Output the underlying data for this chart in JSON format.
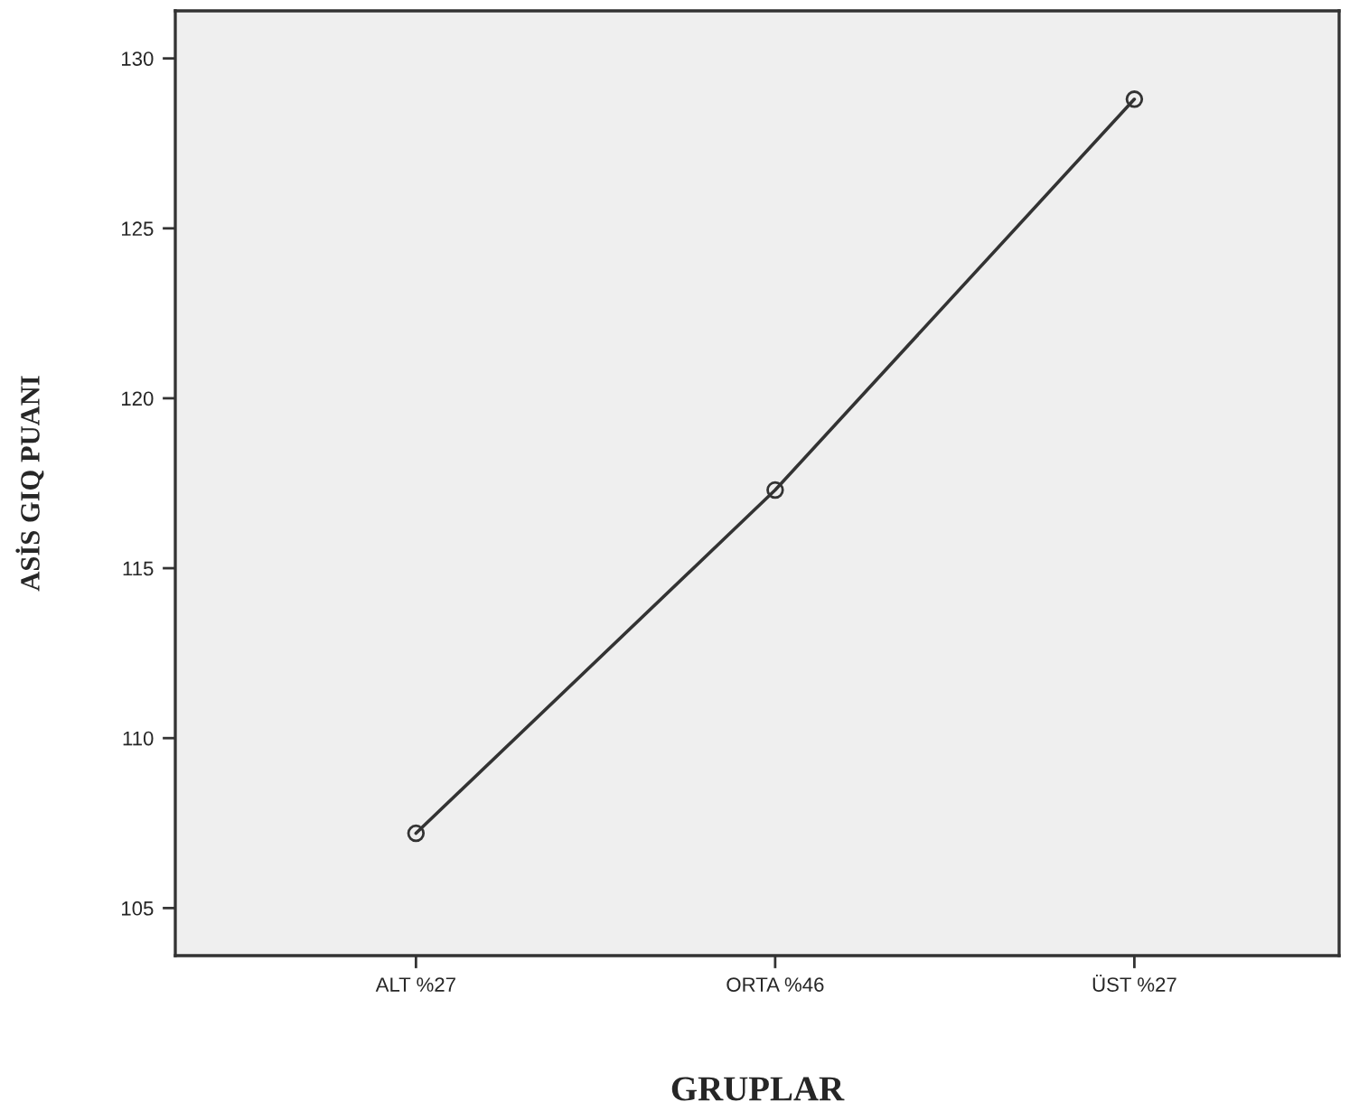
{
  "chart_data": {
    "type": "line",
    "xlabel": "GRUPLAR",
    "ylabel": "ASİS GIQ PUANI",
    "categories": [
      "ALT %27",
      "ORTA %46",
      "ÜST %27"
    ],
    "series": [
      {
        "color": "#333333",
        "values": [
          107.2,
          117.3,
          128.8
        ]
      }
    ],
    "ylim": [
      103.6,
      131.4
    ],
    "yticks": [
      105,
      110,
      115,
      120,
      125,
      130
    ],
    "grid": false,
    "legend": false,
    "marker": "circle",
    "line_style": "solid"
  }
}
